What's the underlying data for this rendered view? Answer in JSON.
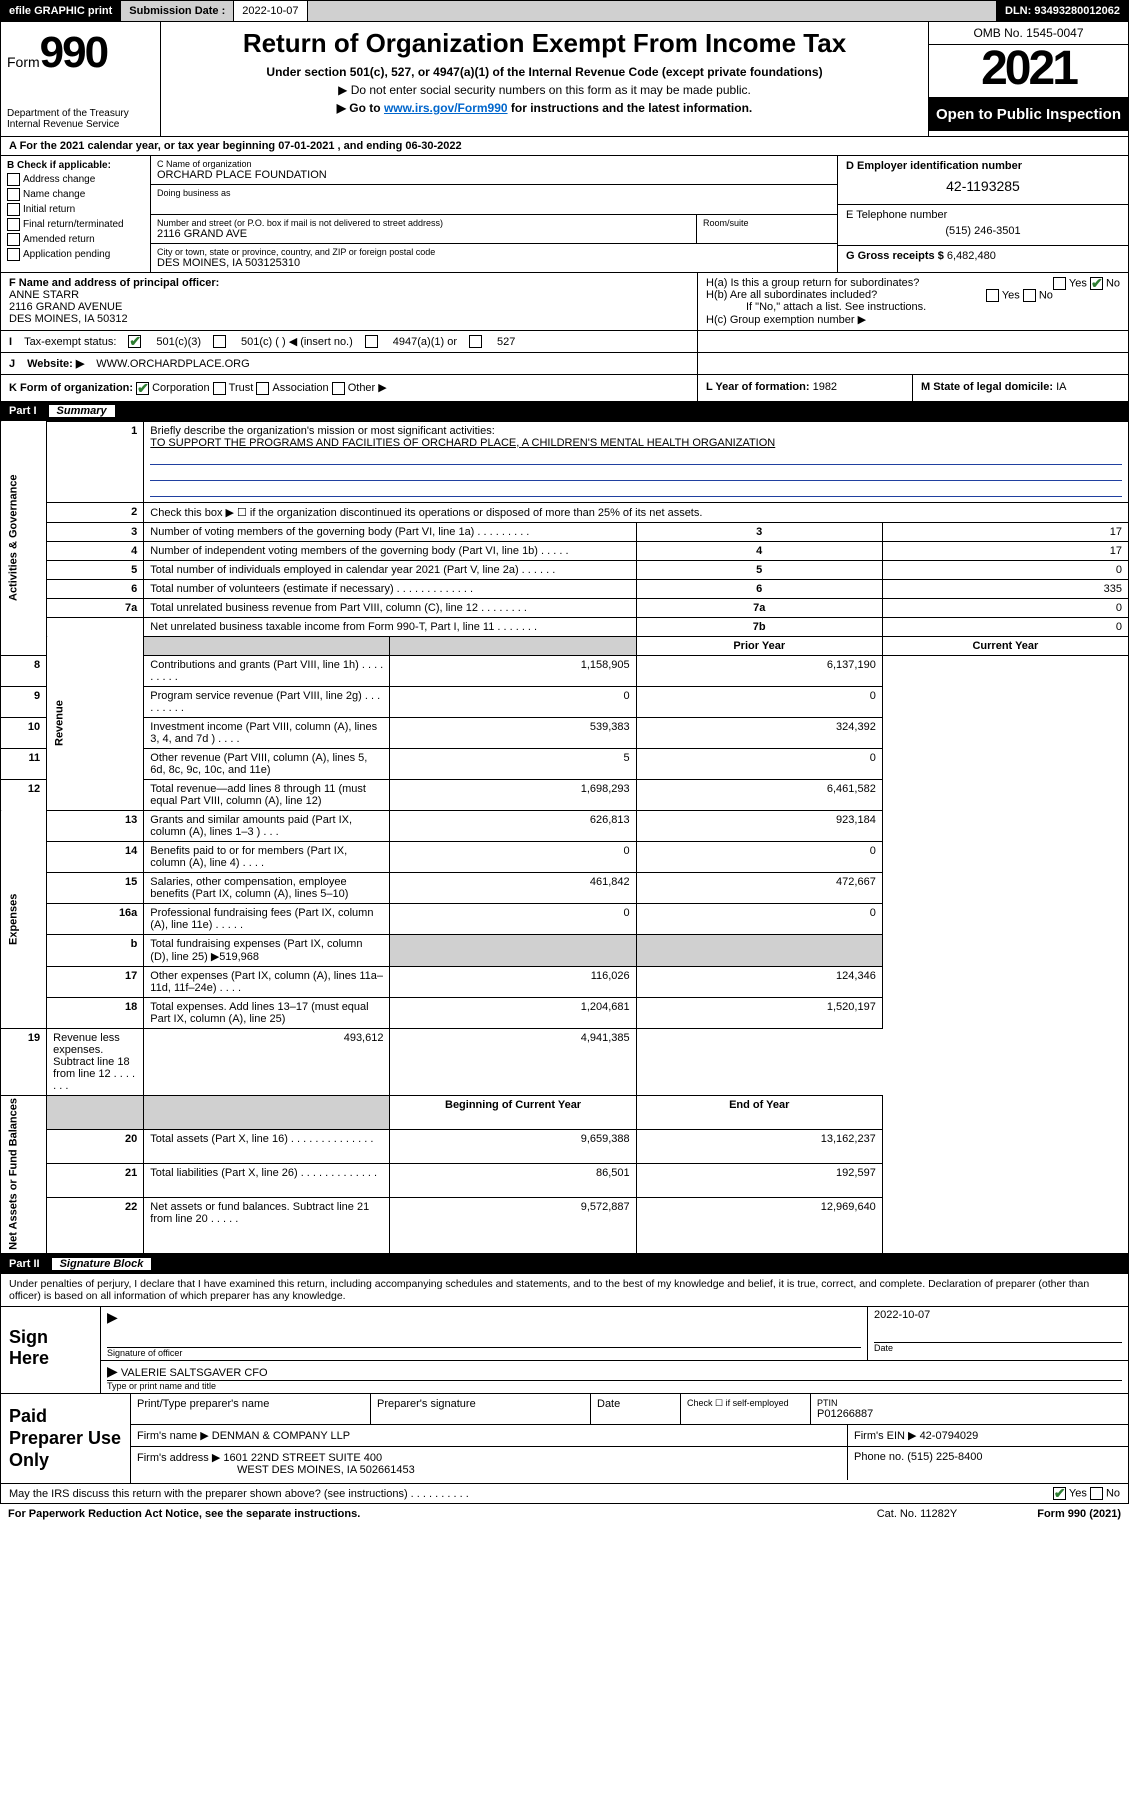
{
  "topbar": {
    "efile": "efile GRAPHIC print",
    "submit_lbl": "Submission Date :",
    "submit_date": "2022-10-07",
    "dln": "DLN: 93493280012062"
  },
  "header": {
    "form_word": "Form",
    "form_no": "990",
    "dept": "Department of the Treasury",
    "irs": "Internal Revenue Service",
    "title": "Return of Organization Exempt From Income Tax",
    "sub1": "Under section 501(c), 527, or 4947(a)(1) of the Internal Revenue Code (except private foundations)",
    "sub2": "▶ Do not enter social security numbers on this form as it may be made public.",
    "sub3_pre": "▶ Go to ",
    "sub3_link": "www.irs.gov/Form990",
    "sub3_post": " for instructions and the latest information.",
    "omb": "OMB No. 1545-0047",
    "year": "2021",
    "open": "Open to Public Inspection"
  },
  "row_a": "A For the 2021 calendar year, or tax year beginning 07-01-2021  , and ending 06-30-2022",
  "col_b": {
    "hdr": "B Check if applicable:",
    "items": [
      "Address change",
      "Name change",
      "Initial return",
      "Final return/terminated",
      "Amended return",
      "Application pending"
    ]
  },
  "col_c": {
    "name_lbl": "C Name of organization",
    "name": "ORCHARD PLACE FOUNDATION",
    "dba_lbl": "Doing business as",
    "addr_lbl": "Number and street (or P.O. box if mail is not delivered to street address)",
    "addr": "2116 GRAND AVE",
    "room_lbl": "Room/suite",
    "city_lbl": "City or town, state or province, country, and ZIP or foreign postal code",
    "city": "DES MOINES, IA  503125310"
  },
  "col_d": {
    "ein_lbl": "D Employer identification number",
    "ein": "42-1193285",
    "tel_lbl": "E Telephone number",
    "tel": "(515) 246-3501",
    "gross_lbl": "G Gross receipts $",
    "gross": "6,482,480"
  },
  "row_f": {
    "lbl": "F Name and address of principal officer:",
    "name": "ANNE STARR",
    "addr1": "2116 GRAND AVENUE",
    "addr2": "DES MOINES, IA  50312"
  },
  "row_h": {
    "ha": "H(a)  Is this a group return for subordinates?",
    "hb": "H(b)  Are all subordinates included?",
    "hb_note": "If \"No,\" attach a list. See instructions.",
    "hc": "H(c)  Group exemption number ▶"
  },
  "row_i": {
    "lbl": "Tax-exempt status:",
    "o1": "501(c)(3)",
    "o2": "501(c) (  ) ◀ (insert no.)",
    "o3": "4947(a)(1) or",
    "o4": "527"
  },
  "row_j": {
    "lbl": "Website: ▶",
    "val": "WWW.ORCHARDPLACE.ORG"
  },
  "row_k": {
    "lbl": "K Form of organization:",
    "o1": "Corporation",
    "o2": "Trust",
    "o3": "Association",
    "o4": "Other ▶",
    "l_lbl": "L Year of formation:",
    "l_val": "1982",
    "m_lbl": "M State of legal domicile:",
    "m_val": "IA"
  },
  "part1": {
    "no": "Part I",
    "title": "Summary"
  },
  "sidelabels": [
    "Activities & Governance",
    "Revenue",
    "Expenses",
    "Net Assets or Fund Balances"
  ],
  "summary": {
    "l1_lbl": "Briefly describe the organization's mission or most significant activities:",
    "l1_text": "TO SUPPORT THE PROGRAMS AND FACILITIES OF ORCHARD PLACE, A CHILDREN'S MENTAL HEALTH ORGANIZATION",
    "l2_lbl": "Check this box ▶ ☐  if the organization discontinued its operations or disposed of more than 25% of its net assets.",
    "rows_gov": [
      {
        "n": "3",
        "d": "Number of voting members of the governing body (Part VI, line 1a)   .    .    .    .    .    .    .    .    .",
        "k": "3",
        "v": "17"
      },
      {
        "n": "4",
        "d": "Number of independent voting members of the governing body (Part VI, line 1b)   .    .    .    .    .",
        "k": "4",
        "v": "17"
      },
      {
        "n": "5",
        "d": "Total number of individuals employed in calendar year 2021 (Part V, line 2a)   .    .    .    .    .    .",
        "k": "5",
        "v": "0"
      },
      {
        "n": "6",
        "d": "Total number of volunteers (estimate if necessary)   .    .    .    .    .    .    .    .    .    .    .    .    .",
        "k": "6",
        "v": "335"
      },
      {
        "n": "7a",
        "d": "Total unrelated business revenue from Part VIII, column (C), line 12   .    .    .    .    .    .    .    .",
        "k": "7a",
        "v": "0"
      },
      {
        "n": "",
        "d": "Net unrelated business taxable income from Form 990-T, Part I, line 11   .    .    .    .    .    .    .",
        "k": "7b",
        "v": "0"
      }
    ],
    "hdr_prior": "Prior Year",
    "hdr_curr": "Current Year",
    "rows_rev": [
      {
        "n": "8",
        "d": "Contributions and grants (Part VIII, line 1h)   .    .    .    .    .    .    .    .    .",
        "p": "1,158,905",
        "c": "6,137,190"
      },
      {
        "n": "9",
        "d": "Program service revenue (Part VIII, line 2g)   .    .    .    .    .    .    .    .    .",
        "p": "0",
        "c": "0"
      },
      {
        "n": "10",
        "d": "Investment income (Part VIII, column (A), lines 3, 4, and 7d )   .    .    .    .",
        "p": "539,383",
        "c": "324,392"
      },
      {
        "n": "11",
        "d": "Other revenue (Part VIII, column (A), lines 5, 6d, 8c, 9c, 10c, and 11e)",
        "p": "5",
        "c": "0"
      },
      {
        "n": "12",
        "d": "Total revenue—add lines 8 through 11 (must equal Part VIII, column (A), line 12)",
        "p": "1,698,293",
        "c": "6,461,582"
      }
    ],
    "rows_exp": [
      {
        "n": "13",
        "d": "Grants and similar amounts paid (Part IX, column (A), lines 1–3 )   .    .    .",
        "p": "626,813",
        "c": "923,184"
      },
      {
        "n": "14",
        "d": "Benefits paid to or for members (Part IX, column (A), line 4)   .    .    .    .",
        "p": "0",
        "c": "0"
      },
      {
        "n": "15",
        "d": "Salaries, other compensation, employee benefits (Part IX, column (A), lines 5–10)",
        "p": "461,842",
        "c": "472,667"
      },
      {
        "n": "16a",
        "d": "Professional fundraising fees (Part IX, column (A), line 11e)   .    .    .    .    .",
        "p": "0",
        "c": "0"
      },
      {
        "n": "b",
        "d": "Total fundraising expenses (Part IX, column (D), line 25) ▶519,968",
        "p": "",
        "c": "",
        "shaded": true
      },
      {
        "n": "17",
        "d": "Other expenses (Part IX, column (A), lines 11a–11d, 11f–24e)   .    .    .    .",
        "p": "116,026",
        "c": "124,346"
      },
      {
        "n": "18",
        "d": "Total expenses. Add lines 13–17 (must equal Part IX, column (A), line 25)",
        "p": "1,204,681",
        "c": "1,520,197"
      },
      {
        "n": "19",
        "d": "Revenue less expenses. Subtract line 18 from line 12   .    .    .    .    .    .    .",
        "p": "493,612",
        "c": "4,941,385"
      }
    ],
    "hdr_beg": "Beginning of Current Year",
    "hdr_end": "End of Year",
    "rows_net": [
      {
        "n": "20",
        "d": "Total assets (Part X, line 16)   .    .    .    .    .    .    .    .    .    .    .    .    .    .",
        "p": "9,659,388",
        "c": "13,162,237"
      },
      {
        "n": "21",
        "d": "Total liabilities (Part X, line 26)   .    .    .    .    .    .    .    .    .    .    .    .    .",
        "p": "86,501",
        "c": "192,597"
      },
      {
        "n": "22",
        "d": "Net assets or fund balances. Subtract line 21 from line 20   .    .    .    .    .",
        "p": "9,572,887",
        "c": "12,969,640"
      }
    ]
  },
  "part2": {
    "no": "Part II",
    "title": "Signature Block"
  },
  "sig": {
    "declare": "Under penalties of perjury, I declare that I have examined this return, including accompanying schedules and statements, and to the best of my knowledge and belief, it is true, correct, and complete. Declaration of preparer (other than officer) is based on all information of which preparer has any knowledge.",
    "sign_here": "Sign Here",
    "officer_lbl": "Signature of officer",
    "date_lbl": "Date",
    "date": "2022-10-07",
    "officer_name": "VALERIE SALTSGAVER CFO",
    "type_lbl": "Type or print name and title"
  },
  "prep": {
    "title": "Paid Preparer Use Only",
    "name_lbl": "Print/Type preparer's name",
    "sig_lbl": "Preparer's signature",
    "date_lbl": "Date",
    "check_lbl": "Check ☐ if self-employed",
    "ptin_lbl": "PTIN",
    "ptin": "P01266887",
    "firm_name_lbl": "Firm's name    ▶",
    "firm_name": "DENMAN & COMPANY LLP",
    "firm_ein_lbl": "Firm's EIN ▶",
    "firm_ein": "42-0794029",
    "firm_addr_lbl": "Firm's address ▶",
    "firm_addr1": "1601 22ND STREET SUITE 400",
    "firm_addr2": "WEST DES MOINES, IA  502661453",
    "phone_lbl": "Phone no.",
    "phone": "(515) 225-8400"
  },
  "footer": {
    "discuss": "May the IRS discuss this return with the preparer shown above? (see instructions)   .    .    .    .    .    .    .    .    .    .",
    "yes": "Yes",
    "no": "No",
    "paperwork": "For Paperwork Reduction Act Notice, see the separate instructions.",
    "cat": "Cat. No. 11282Y",
    "formver": "Form 990 (2021)"
  }
}
